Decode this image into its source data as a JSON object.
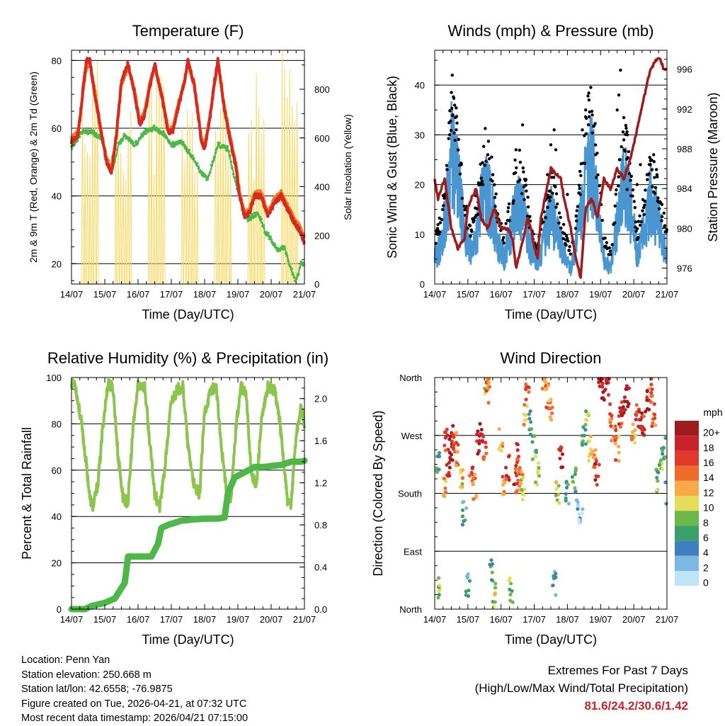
{
  "chart_data": [
    {
      "type": "line",
      "title": "Temperature (F)",
      "xlabel": "Time (Day/UTC)",
      "ylabel": "2m & 9m T (Red, Orange) & 2m Td (Green)",
      "y2label": "Solar Insolation (Yellow)",
      "x_ticks": [
        "14/07",
        "15/07",
        "16/07",
        "17/07",
        "18/07",
        "19/07",
        "20/07",
        "21/07"
      ],
      "xlim": [
        0,
        7
      ],
      "ylim": [
        14,
        83
      ],
      "y_ticks": [
        20,
        40,
        60,
        80
      ],
      "y2lim": [
        0,
        960
      ],
      "y2_ticks": [
        0,
        200,
        400,
        600,
        800
      ],
      "gridlines_y": [
        20,
        40,
        60,
        80
      ],
      "series": [
        {
          "name": "2m T",
          "color": "#d42a20",
          "x": [
            0,
            0.2,
            0.35,
            0.45,
            0.55,
            0.7,
            0.9,
            1.05,
            1.2,
            1.35,
            1.5,
            1.7,
            1.9,
            2.05,
            2.2,
            2.35,
            2.5,
            2.7,
            2.9,
            3.05,
            3.2,
            3.4,
            3.5,
            3.7,
            3.9,
            4.0,
            4.15,
            4.3,
            4.4,
            4.6,
            4.8,
            4.95,
            5.05,
            5.2,
            5.35,
            5.5,
            5.7,
            5.9,
            6.1,
            6.3,
            6.5,
            6.7,
            6.85,
            7.0
          ],
          "values": [
            56,
            58,
            72,
            80,
            80,
            70,
            58,
            50,
            47,
            58,
            74,
            79,
            70,
            61,
            64,
            72,
            79,
            70,
            59,
            59,
            66,
            74,
            80,
            72,
            56,
            54,
            62,
            74,
            80,
            65,
            55,
            48,
            40,
            34,
            35,
            40,
            40,
            34,
            38,
            40,
            36,
            32,
            30,
            26
          ]
        },
        {
          "name": "9m T",
          "color": "#f07e28",
          "x": [
            0,
            0.2,
            0.35,
            0.45,
            0.55,
            0.7,
            0.9,
            1.05,
            1.2,
            1.35,
            1.5,
            1.7,
            1.9,
            2.05,
            2.2,
            2.35,
            2.5,
            2.7,
            2.9,
            3.05,
            3.2,
            3.4,
            3.5,
            3.7,
            3.9,
            4.0,
            4.15,
            4.3,
            4.4,
            4.6,
            4.8,
            4.95,
            5.05,
            5.2,
            5.35,
            5.5,
            5.7,
            5.9,
            6.1,
            6.3,
            6.5,
            6.7,
            6.85,
            7.0
          ],
          "values": [
            57,
            59,
            71,
            78,
            79,
            71,
            59,
            51,
            48,
            59,
            73,
            78,
            71,
            62,
            65,
            73,
            78,
            71,
            60,
            60,
            67,
            74,
            79,
            73,
            57,
            55,
            63,
            73,
            79,
            66,
            56,
            49,
            41,
            35,
            36,
            41,
            41,
            35,
            39,
            41,
            37,
            33,
            31,
            28
          ]
        },
        {
          "name": "2m Td",
          "color": "#4db848",
          "x": [
            0,
            0.3,
            0.6,
            0.9,
            1.1,
            1.25,
            1.4,
            1.6,
            1.9,
            2.2,
            2.5,
            2.8,
            3.0,
            3.3,
            3.6,
            3.9,
            4.1,
            4.4,
            4.7,
            4.9,
            5.1,
            5.3,
            5.6,
            5.8,
            6.0,
            6.2,
            6.4,
            6.6,
            6.75,
            6.9,
            7.0
          ],
          "values": [
            54,
            59,
            59,
            57,
            50,
            48,
            55,
            58,
            55,
            59,
            60,
            58,
            55,
            56,
            52,
            47,
            45,
            55,
            54,
            45,
            38,
            33,
            35,
            30,
            27,
            24,
            25,
            18,
            15,
            20,
            20
          ]
        },
        {
          "name": "Solar Insolation",
          "axis": "y2",
          "color": "#f8d966",
          "peaks_x": [
            0.55,
            1.55,
            2.55,
            3.55,
            4.55,
            5.55,
            6.55
          ],
          "peak_values": [
            940,
            910,
            930,
            820,
            870,
            880,
            960
          ]
        }
      ]
    },
    {
      "type": "scatter",
      "title": "Winds (mph) & Pressure (mb)",
      "xlabel": "Time (Day/UTC)",
      "ylabel": "Sonic Wind & Gust (Blue, Black)",
      "y2label": "Station Pressure (Maroon)",
      "x_ticks": [
        "14/07",
        "15/07",
        "16/07",
        "17/07",
        "18/07",
        "19/07",
        "20/07",
        "21/07"
      ],
      "xlim": [
        0,
        7
      ],
      "ylim": [
        0,
        47
      ],
      "y_ticks": [
        0,
        10,
        20,
        30,
        40
      ],
      "y2lim": [
        974.4,
        997.9
      ],
      "y2_ticks": [
        976,
        980,
        984,
        988,
        992,
        996
      ],
      "gridlines_y": [
        10,
        20,
        30,
        40
      ],
      "series": [
        {
          "name": "Sonic Wind",
          "color": "#4a96d0",
          "x": [
            0,
            0.2,
            0.4,
            0.5,
            0.7,
            0.9,
            1.1,
            1.3,
            1.5,
            1.7,
            1.9,
            2.1,
            2.3,
            2.5,
            2.7,
            2.9,
            3.1,
            3.3,
            3.5,
            3.7,
            3.9,
            4.1,
            4.3,
            4.5,
            4.7,
            4.9,
            5.1,
            5.3,
            5.5,
            5.7,
            5.9,
            6.1,
            6.3,
            6.5,
            6.7,
            6.9,
            7.0
          ],
          "values": [
            5,
            8,
            18,
            26,
            20,
            10,
            6,
            12,
            19,
            16,
            8,
            5,
            11,
            17,
            13,
            7,
            4,
            9,
            14,
            10,
            6,
            3,
            10,
            18,
            26,
            16,
            5,
            3,
            12,
            22,
            15,
            6,
            10,
            17,
            13,
            8,
            6
          ]
        },
        {
          "name": "Gust",
          "color": "#000000",
          "x": [
            0.1,
            0.3,
            0.45,
            0.55,
            0.65,
            0.8,
            1.3,
            1.45,
            1.6,
            1.75,
            1.9,
            2.45,
            2.65,
            2.75,
            3.4,
            3.5,
            3.6,
            3.65,
            4.0,
            4.45,
            4.55,
            4.65,
            4.75,
            4.85,
            5.5,
            5.55,
            5.6,
            5.7,
            5.8,
            6.1,
            6.2,
            6.4,
            6.5,
            6.6,
            6.7,
            6.85
          ],
          "values": [
            10,
            18,
            30,
            34,
            31,
            24,
            14,
            20,
            26,
            22,
            14,
            27,
            32,
            21,
            22,
            28,
            31,
            27,
            18,
            31,
            35,
            37,
            34,
            26,
            35,
            38,
            43,
            29,
            19,
            20,
            24,
            22,
            24,
            26,
            22,
            16
          ]
        },
        {
          "name": "Station Pressure",
          "axis": "y2",
          "color": "#9e1b1e",
          "x": [
            0,
            0.1,
            0.3,
            0.5,
            0.7,
            0.9,
            1.0,
            1.1,
            1.25,
            1.4,
            1.6,
            1.8,
            2.0,
            2.2,
            2.35,
            2.45,
            2.6,
            2.8,
            2.9,
            3.0,
            3.1,
            3.2,
            3.5,
            3.8,
            3.9,
            4.1,
            4.25,
            4.4,
            4.55,
            4.75,
            4.9,
            5.0,
            5.1,
            5.3,
            5.5,
            5.7,
            5.9,
            6.1,
            6.3,
            6.5,
            6.7,
            6.8,
            6.9,
            7.0
          ],
          "values": [
            985,
            983,
            985,
            980,
            978,
            979,
            982,
            983,
            984,
            981,
            980,
            982,
            980,
            980,
            979,
            976,
            978,
            981,
            980,
            978,
            977,
            981,
            986,
            985,
            983,
            980,
            977,
            975,
            982,
            983,
            981,
            983,
            985,
            984,
            986,
            985,
            987,
            990,
            993,
            996,
            997,
            997,
            996,
            996
          ]
        }
      ]
    },
    {
      "type": "line",
      "title": "Relative Humidity (%) & Precipitation (in)",
      "xlabel": "Time (Day/UTC)",
      "ylabel": "Percent & Total Rainfall",
      "x_ticks": [
        "14/07",
        "15/07",
        "16/07",
        "17/07",
        "18/07",
        "19/07",
        "20/07",
        "21/07"
      ],
      "xlim": [
        0,
        7
      ],
      "ylim": [
        0,
        100
      ],
      "y_ticks": [
        0,
        20,
        40,
        60,
        80,
        100
      ],
      "y2lim": [
        0,
        2.2
      ],
      "y2_ticks": [
        0.0,
        0.4,
        0.8,
        1.2,
        1.6,
        2.0
      ],
      "gridlines_y": [
        20,
        40,
        60,
        80
      ],
      "series": [
        {
          "name": "Relative Humidity",
          "color": "#8dc44e",
          "x": [
            0,
            0.1,
            0.3,
            0.45,
            0.55,
            0.65,
            0.8,
            0.95,
            1.1,
            1.25,
            1.4,
            1.55,
            1.7,
            1.85,
            2.0,
            2.2,
            2.35,
            2.5,
            2.65,
            2.8,
            3.0,
            3.2,
            3.35,
            3.5,
            3.7,
            3.85,
            4.0,
            4.2,
            4.35,
            4.5,
            4.65,
            4.8,
            4.95,
            5.1,
            5.25,
            5.4,
            5.55,
            5.7,
            5.9,
            6.1,
            6.25,
            6.4,
            6.5,
            6.6,
            6.75,
            6.9,
            7.0
          ],
          "values": [
            98,
            98,
            80,
            62,
            48,
            44,
            55,
            80,
            98,
            95,
            66,
            48,
            46,
            78,
            97,
            96,
            72,
            50,
            44,
            60,
            90,
            95,
            96,
            70,
            52,
            50,
            85,
            95,
            96,
            70,
            53,
            48,
            80,
            97,
            92,
            60,
            52,
            80,
            96,
            95,
            82,
            60,
            45,
            46,
            75,
            87,
            80
          ]
        },
        {
          "name": "Total Precipitation",
          "axis": "y2",
          "color": "#4db848",
          "x": [
            0,
            0.4,
            0.6,
            1.0,
            1.3,
            1.6,
            1.7,
            1.8,
            2.0,
            2.4,
            2.6,
            2.7,
            2.9,
            3.3,
            3.6,
            4.0,
            4.4,
            4.6,
            4.7,
            4.9,
            5.2,
            5.5,
            5.8,
            6.0,
            6.3,
            6.6,
            6.9,
            7.0
          ],
          "values": [
            0,
            0,
            0.03,
            0.06,
            0.1,
            0.25,
            0.5,
            0.5,
            0.5,
            0.5,
            0.62,
            0.77,
            0.8,
            0.84,
            0.85,
            0.86,
            0.86,
            0.87,
            1.1,
            1.25,
            1.3,
            1.35,
            1.35,
            1.36,
            1.37,
            1.4,
            1.4,
            1.41
          ]
        }
      ]
    },
    {
      "type": "scatter",
      "title": "Wind Direction",
      "xlabel": "Time (Day/UTC)",
      "ylabel": "Direction (Colored By Speed)",
      "x_ticks": [
        "14/07",
        "15/07",
        "16/07",
        "17/07",
        "18/07",
        "19/07",
        "20/07",
        "21/07"
      ],
      "xlim": [
        0,
        7
      ],
      "ylim": [
        0,
        360
      ],
      "y_tick_labels": [
        "North",
        "East",
        "South",
        "West",
        "North"
      ],
      "y_tick_values": [
        0,
        90,
        180,
        270,
        360
      ],
      "gridlines_y": [
        90,
        180,
        270
      ],
      "colorbar": {
        "label": "mph",
        "levels": [
          "20+",
          "18",
          "16",
          "14",
          "12",
          "10",
          "8",
          "6",
          "4",
          "2",
          "0"
        ],
        "colors": [
          "#9e1b1e",
          "#c8232a",
          "#e0392b",
          "#f06a2a",
          "#f9a84a",
          "#e6dc5b",
          "#6cb84a",
          "#3aa06a",
          "#3f7fc0",
          "#7cb8e4",
          "#bfe3f7"
        ]
      },
      "series": [
        {
          "name": "Direction",
          "x": [
            0.1,
            0.15,
            0.3,
            0.35,
            0.4,
            0.5,
            0.55,
            0.6,
            0.65,
            0.8,
            0.9,
            1.0,
            1.1,
            1.2,
            1.3,
            1.4,
            1.5,
            1.55,
            1.6,
            1.7,
            1.8,
            2.0,
            2.1,
            2.2,
            2.3,
            2.45,
            2.5,
            2.55,
            2.6,
            2.65,
            2.75,
            2.8,
            2.9,
            3.0,
            3.1,
            3.3,
            3.4,
            3.5,
            3.6,
            3.7,
            3.8,
            4.0,
            4.2,
            4.3,
            4.4,
            4.5,
            4.6,
            4.7,
            4.8,
            4.9,
            5.0,
            5.1,
            5.2,
            5.3,
            5.4,
            5.5,
            5.6,
            5.7,
            5.8,
            6.0,
            6.1,
            6.2,
            6.3,
            6.4,
            6.5,
            6.6,
            6.7,
            6.8,
            6.9,
            7.0
          ],
          "directions": [
            230,
            30,
            190,
            260,
            210,
            250,
            265,
            255,
            240,
            200,
            150,
            40,
            210,
            190,
            260,
            270,
            250,
            355,
            340,
            60,
            20,
            260,
            190,
            220,
            30,
            200,
            240,
            220,
            200,
            185,
            300,
            340,
            290,
            250,
            210,
            350,
            330,
            310,
            40,
            180,
            240,
            180,
            200,
            170,
            140,
            270,
            290,
            250,
            240,
            210,
            360,
            340,
            350,
            300,
            280,
            250,
            300,
            320,
            330,
            270,
            300,
            290,
            280,
            320,
            340,
            300,
            200,
            230,
            250,
            180
          ],
          "speeds": [
            6,
            8,
            12,
            16,
            18,
            20,
            17,
            15,
            14,
            11,
            5,
            4,
            16,
            13,
            18,
            19,
            15,
            10,
            14,
            6,
            9,
            12,
            14,
            16,
            8,
            17,
            18,
            14,
            13,
            10,
            12,
            15,
            6,
            7,
            9,
            12,
            14,
            13,
            4,
            10,
            18,
            5,
            7,
            3,
            2,
            6,
            8,
            12,
            15,
            18,
            20,
            19,
            17,
            15,
            14,
            13,
            16,
            18,
            20,
            12,
            16,
            18,
            17,
            19,
            15,
            14,
            7,
            8,
            6,
            5
          ]
        }
      ]
    }
  ],
  "info": {
    "location": "Location: Penn Yan",
    "elevation": "Station elevation: 250.668 m",
    "latlon": "Station lat/lon: 42.6558; -76.9875",
    "created": "Figure created on Tue, 2026-04-21, at 07:32 UTC",
    "recent": "Most recent data timestamp: 2026/04/21 07:15:00"
  },
  "extremes": {
    "title": "Extremes For Past 7 Days",
    "subtitle": "(High/Low/Max Wind/Total Precipitation)",
    "values": "81.6/24.2/30.6/1.42",
    "value_color": "#c8232a"
  }
}
